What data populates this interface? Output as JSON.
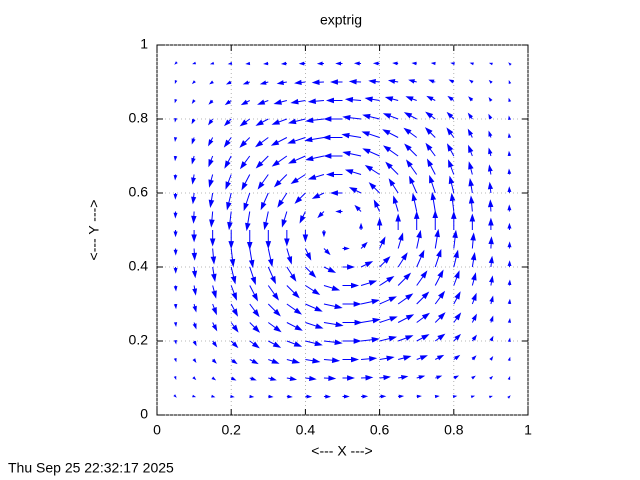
{
  "chart_data": {
    "type": "vector",
    "title": "exptrig",
    "x_label": "<--- X --->",
    "y_label": "<--- Y --->",
    "timestamp": "Thu Sep 25 22:32:17 2025",
    "color": "#0000ff",
    "grid": true,
    "xlim": [
      0,
      1
    ],
    "ylim": [
      0,
      1
    ],
    "xticks": [
      0,
      0.2,
      0.4,
      0.6,
      0.8,
      1
    ],
    "yticks": [
      0,
      0.2,
      0.4,
      0.6,
      0.8,
      1
    ],
    "x": [
      0.05,
      0.1,
      0.15,
      0.2,
      0.25,
      0.3,
      0.35,
      0.4,
      0.45,
      0.5,
      0.55,
      0.6,
      0.65,
      0.7,
      0.75,
      0.8,
      0.85,
      0.9,
      0.95
    ],
    "y": [
      0.05,
      0.1,
      0.15,
      0.2,
      0.25,
      0.3,
      0.35,
      0.4,
      0.45,
      0.5,
      0.55,
      0.6,
      0.65,
      0.7,
      0.75,
      0.8,
      0.85,
      0.9,
      0.95
    ],
    "u": [
      [
        0.01,
        0.03,
        0.07,
        0.11,
        0.16,
        0.2,
        0.24,
        0.28,
        0.3,
        0.31,
        0.3,
        0.28,
        0.24,
        0.2,
        0.16,
        0.11,
        0.07,
        0.03,
        0.01
      ],
      [
        0.01,
        0.06,
        0.12,
        0.21,
        0.3,
        0.38,
        0.47,
        0.53,
        0.58,
        0.59,
        0.58,
        0.53,
        0.47,
        0.38,
        0.3,
        0.21,
        0.12,
        0.06,
        0.01
      ],
      [
        0.02,
        0.08,
        0.17,
        0.28,
        0.41,
        0.53,
        0.64,
        0.73,
        0.79,
        0.81,
        0.79,
        0.73,
        0.64,
        0.53,
        0.41,
        0.28,
        0.17,
        0.08,
        0.02
      ],
      [
        0.02,
        0.1,
        0.2,
        0.33,
        0.48,
        0.62,
        0.75,
        0.86,
        0.93,
        0.95,
        0.93,
        0.86,
        0.75,
        0.62,
        0.48,
        0.33,
        0.2,
        0.1,
        0.02
      ],
      [
        0.02,
        0.1,
        0.21,
        0.35,
        0.5,
        0.65,
        0.79,
        0.9,
        0.98,
        1,
        0.98,
        0.9,
        0.79,
        0.65,
        0.5,
        0.35,
        0.21,
        0.1,
        0.02
      ],
      [
        0.02,
        0.1,
        0.2,
        0.33,
        0.48,
        0.62,
        0.75,
        0.86,
        0.93,
        0.95,
        0.93,
        0.86,
        0.75,
        0.62,
        0.48,
        0.33,
        0.2,
        0.1,
        0.02
      ],
      [
        0.02,
        0.08,
        0.17,
        0.28,
        0.41,
        0.53,
        0.64,
        0.73,
        0.79,
        0.81,
        0.79,
        0.73,
        0.64,
        0.53,
        0.41,
        0.28,
        0.17,
        0.08,
        0.02
      ],
      [
        0.01,
        0.06,
        0.12,
        0.21,
        0.3,
        0.38,
        0.47,
        0.53,
        0.58,
        0.59,
        0.58,
        0.53,
        0.47,
        0.38,
        0.3,
        0.21,
        0.12,
        0.06,
        0.01
      ],
      [
        0.01,
        0.03,
        0.07,
        0.11,
        0.16,
        0.2,
        0.24,
        0.28,
        0.3,
        0.31,
        0.3,
        0.28,
        0.24,
        0.2,
        0.16,
        0.11,
        0.07,
        0.03,
        0.01
      ],
      [
        0,
        0,
        0,
        0,
        0,
        0,
        0,
        0,
        0,
        0,
        0,
        0,
        0,
        0,
        0,
        0,
        0,
        0,
        0
      ],
      [
        -0.01,
        -0.03,
        -0.07,
        -0.11,
        -0.16,
        -0.2,
        -0.24,
        -0.28,
        -0.3,
        -0.31,
        -0.3,
        -0.28,
        -0.24,
        -0.2,
        -0.16,
        -0.11,
        -0.07,
        -0.03,
        -0.01
      ],
      [
        -0.01,
        -0.06,
        -0.12,
        -0.21,
        -0.3,
        -0.38,
        -0.47,
        -0.53,
        -0.58,
        -0.59,
        -0.58,
        -0.53,
        -0.47,
        -0.38,
        -0.3,
        -0.21,
        -0.12,
        -0.06,
        -0.01
      ],
      [
        -0.02,
        -0.08,
        -0.17,
        -0.28,
        -0.41,
        -0.53,
        -0.64,
        -0.73,
        -0.79,
        -0.81,
        -0.79,
        -0.73,
        -0.64,
        -0.53,
        -0.41,
        -0.28,
        -0.17,
        -0.08,
        -0.02
      ],
      [
        -0.02,
        -0.1,
        -0.2,
        -0.33,
        -0.48,
        -0.62,
        -0.75,
        -0.86,
        -0.93,
        -0.95,
        -0.93,
        -0.86,
        -0.75,
        -0.62,
        -0.48,
        -0.33,
        -0.2,
        -0.1,
        -0.02
      ],
      [
        -0.02,
        -0.1,
        -0.21,
        -0.35,
        -0.5,
        -0.65,
        -0.79,
        -0.9,
        -0.98,
        -1,
        -0.98,
        -0.9,
        -0.79,
        -0.65,
        -0.5,
        -0.35,
        -0.21,
        -0.1,
        -0.02
      ],
      [
        -0.02,
        -0.1,
        -0.2,
        -0.33,
        -0.48,
        -0.62,
        -0.75,
        -0.86,
        -0.93,
        -0.95,
        -0.93,
        -0.86,
        -0.75,
        -0.62,
        -0.48,
        -0.33,
        -0.2,
        -0.1,
        -0.02
      ],
      [
        -0.02,
        -0.08,
        -0.17,
        -0.28,
        -0.41,
        -0.53,
        -0.64,
        -0.73,
        -0.79,
        -0.81,
        -0.79,
        -0.73,
        -0.64,
        -0.53,
        -0.41,
        -0.28,
        -0.17,
        -0.08,
        -0.02
      ],
      [
        -0.01,
        -0.06,
        -0.12,
        -0.21,
        -0.3,
        -0.38,
        -0.47,
        -0.53,
        -0.58,
        -0.59,
        -0.58,
        -0.53,
        -0.47,
        -0.38,
        -0.3,
        -0.21,
        -0.12,
        -0.06,
        -0.01
      ],
      [
        -0.01,
        -0.03,
        -0.07,
        -0.11,
        -0.16,
        -0.2,
        -0.24,
        -0.28,
        -0.3,
        -0.31,
        -0.3,
        -0.28,
        -0.24,
        -0.2,
        -0.16,
        -0.11,
        -0.07,
        -0.03,
        -0.01
      ]
    ],
    "v": [
      [
        -0.01,
        -0.01,
        -0.02,
        -0.02,
        -0.02,
        -0.02,
        -0.02,
        -0.01,
        -0.01,
        0,
        0.01,
        0.01,
        0.02,
        0.02,
        0.02,
        0.02,
        0.02,
        0.01,
        0.01
      ],
      [
        -0.03,
        -0.06,
        -0.08,
        -0.1,
        -0.1,
        -0.1,
        -0.08,
        -0.06,
        -0.03,
        0,
        0.03,
        0.06,
        0.08,
        0.1,
        0.1,
        0.1,
        0.08,
        0.06,
        0.03
      ],
      [
        -0.07,
        -0.12,
        -0.17,
        -0.2,
        -0.21,
        -0.2,
        -0.17,
        -0.12,
        -0.07,
        0,
        0.07,
        0.12,
        0.17,
        0.2,
        0.21,
        0.2,
        0.17,
        0.12,
        0.07
      ],
      [
        -0.11,
        -0.21,
        -0.28,
        -0.33,
        -0.35,
        -0.33,
        -0.28,
        -0.21,
        -0.11,
        0,
        0.11,
        0.21,
        0.28,
        0.33,
        0.35,
        0.33,
        0.28,
        0.21,
        0.11
      ],
      [
        -0.16,
        -0.3,
        -0.41,
        -0.48,
        -0.5,
        -0.48,
        -0.41,
        -0.3,
        -0.16,
        0,
        0.16,
        0.3,
        0.41,
        0.48,
        0.5,
        0.48,
        0.41,
        0.3,
        0.16
      ],
      [
        -0.2,
        -0.38,
        -0.53,
        -0.62,
        -0.65,
        -0.62,
        -0.53,
        -0.38,
        -0.2,
        0,
        0.2,
        0.38,
        0.53,
        0.62,
        0.65,
        0.62,
        0.53,
        0.38,
        0.2
      ],
      [
        -0.24,
        -0.47,
        -0.64,
        -0.75,
        -0.79,
        -0.75,
        -0.64,
        -0.47,
        -0.24,
        0,
        0.24,
        0.47,
        0.64,
        0.75,
        0.79,
        0.75,
        0.64,
        0.47,
        0.24
      ],
      [
        -0.28,
        -0.53,
        -0.73,
        -0.86,
        -0.9,
        -0.86,
        -0.73,
        -0.53,
        -0.28,
        0,
        0.28,
        0.53,
        0.73,
        0.86,
        0.9,
        0.86,
        0.73,
        0.53,
        0.28
      ],
      [
        -0.3,
        -0.58,
        -0.79,
        -0.93,
        -0.98,
        -0.93,
        -0.79,
        -0.58,
        -0.3,
        0,
        0.3,
        0.58,
        0.79,
        0.93,
        0.98,
        0.93,
        0.79,
        0.58,
        0.3
      ],
      [
        -0.31,
        -0.59,
        -0.81,
        -0.95,
        -1,
        -0.95,
        -0.81,
        -0.59,
        -0.31,
        0,
        0.31,
        0.59,
        0.81,
        0.95,
        1,
        0.95,
        0.81,
        0.59,
        0.31
      ],
      [
        -0.3,
        -0.58,
        -0.79,
        -0.93,
        -0.98,
        -0.93,
        -0.79,
        -0.58,
        -0.3,
        0,
        0.3,
        0.58,
        0.79,
        0.93,
        0.98,
        0.93,
        0.79,
        0.58,
        0.3
      ],
      [
        -0.28,
        -0.53,
        -0.73,
        -0.86,
        -0.9,
        -0.86,
        -0.73,
        -0.53,
        -0.28,
        0,
        0.28,
        0.53,
        0.73,
        0.86,
        0.9,
        0.86,
        0.73,
        0.53,
        0.28
      ],
      [
        -0.24,
        -0.47,
        -0.64,
        -0.75,
        -0.79,
        -0.75,
        -0.64,
        -0.47,
        -0.24,
        0,
        0.24,
        0.47,
        0.64,
        0.75,
        0.79,
        0.75,
        0.64,
        0.47,
        0.24
      ],
      [
        -0.2,
        -0.38,
        -0.53,
        -0.62,
        -0.65,
        -0.62,
        -0.53,
        -0.38,
        -0.2,
        0,
        0.2,
        0.38,
        0.53,
        0.62,
        0.65,
        0.62,
        0.53,
        0.38,
        0.2
      ],
      [
        -0.16,
        -0.3,
        -0.41,
        -0.48,
        -0.5,
        -0.48,
        -0.41,
        -0.3,
        -0.16,
        0,
        0.16,
        0.3,
        0.41,
        0.48,
        0.5,
        0.48,
        0.41,
        0.3,
        0.16
      ],
      [
        -0.11,
        -0.21,
        -0.28,
        -0.33,
        -0.35,
        -0.33,
        -0.28,
        -0.21,
        -0.11,
        0,
        0.11,
        0.21,
        0.28,
        0.33,
        0.35,
        0.33,
        0.28,
        0.21,
        0.11
      ],
      [
        -0.07,
        -0.12,
        -0.17,
        -0.2,
        -0.21,
        -0.2,
        -0.17,
        -0.12,
        -0.07,
        0,
        0.07,
        0.12,
        0.17,
        0.2,
        0.21,
        0.2,
        0.17,
        0.12,
        0.07
      ],
      [
        -0.03,
        -0.06,
        -0.08,
        -0.1,
        -0.1,
        -0.1,
        -0.08,
        -0.06,
        -0.03,
        0,
        0.03,
        0.06,
        0.08,
        0.1,
        0.1,
        0.1,
        0.08,
        0.06,
        0.03
      ],
      [
        -0.01,
        -0.01,
        -0.02,
        -0.02,
        -0.02,
        -0.02,
        -0.02,
        -0.01,
        -0.01,
        0,
        0.01,
        0.01,
        0.02,
        0.02,
        0.02,
        0.02,
        0.02,
        0.01,
        0.01
      ]
    ]
  }
}
